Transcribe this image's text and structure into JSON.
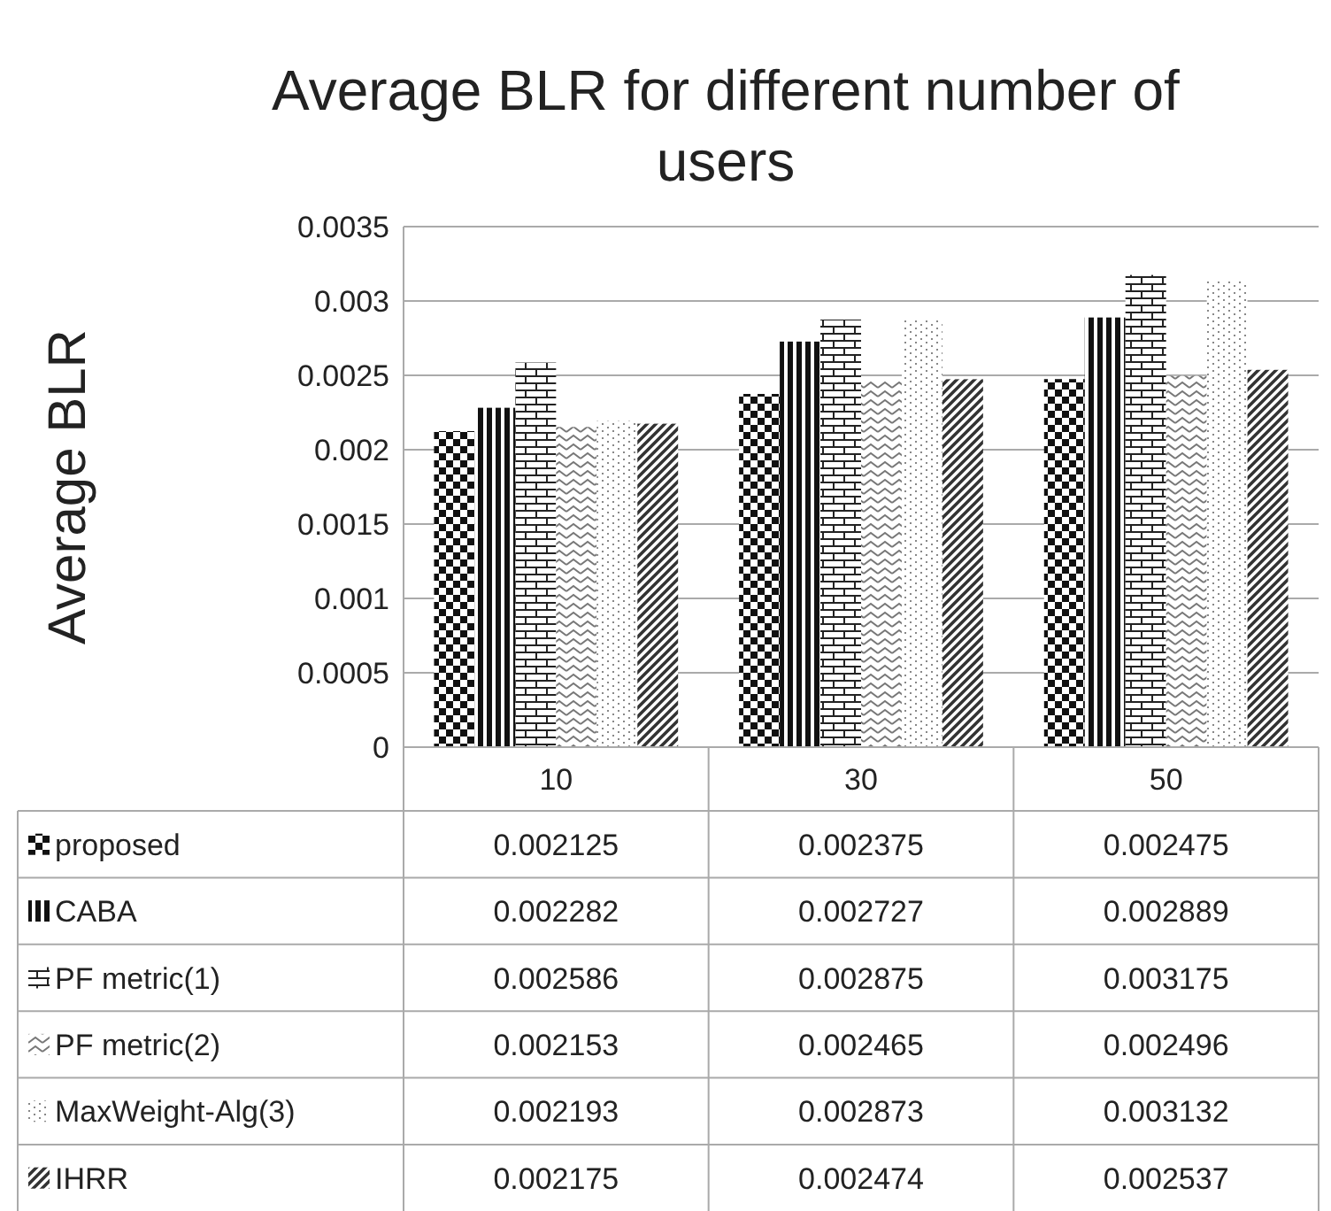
{
  "chart_data": {
    "type": "bar",
    "title": "Average BLR for different number of users",
    "ylabel": "Average BLR",
    "categories": [
      "10",
      "30",
      "50"
    ],
    "series": [
      {
        "name": "proposed",
        "color": "#111111",
        "values": [
          0.002125,
          0.002375,
          0.002475
        ]
      },
      {
        "name": "CABA",
        "color": "#111111",
        "values": [
          0.002282,
          0.002727,
          0.002889
        ]
      },
      {
        "name": "PF metric(1)",
        "color": "#222222",
        "values": [
          0.002586,
          0.002875,
          0.003175
        ]
      },
      {
        "name": "PF metric(2)",
        "color": "#777777",
        "values": [
          0.002153,
          0.002465,
          0.002496
        ]
      },
      {
        "name": "MaxWeight-Alg(3)",
        "color": "#888888",
        "values": [
          0.002193,
          0.002873,
          0.003132
        ]
      },
      {
        "name": "IHRR",
        "color": "#333333",
        "values": [
          0.002175,
          0.002474,
          0.002537
        ]
      }
    ],
    "ylim": [
      0,
      0.0035
    ],
    "yticks": [
      0,
      0.0005,
      0.001,
      0.0015,
      0.002,
      0.0025,
      0.003,
      0.0035
    ],
    "grid": "y",
    "legend": "bottom",
    "data_labels": true
  }
}
